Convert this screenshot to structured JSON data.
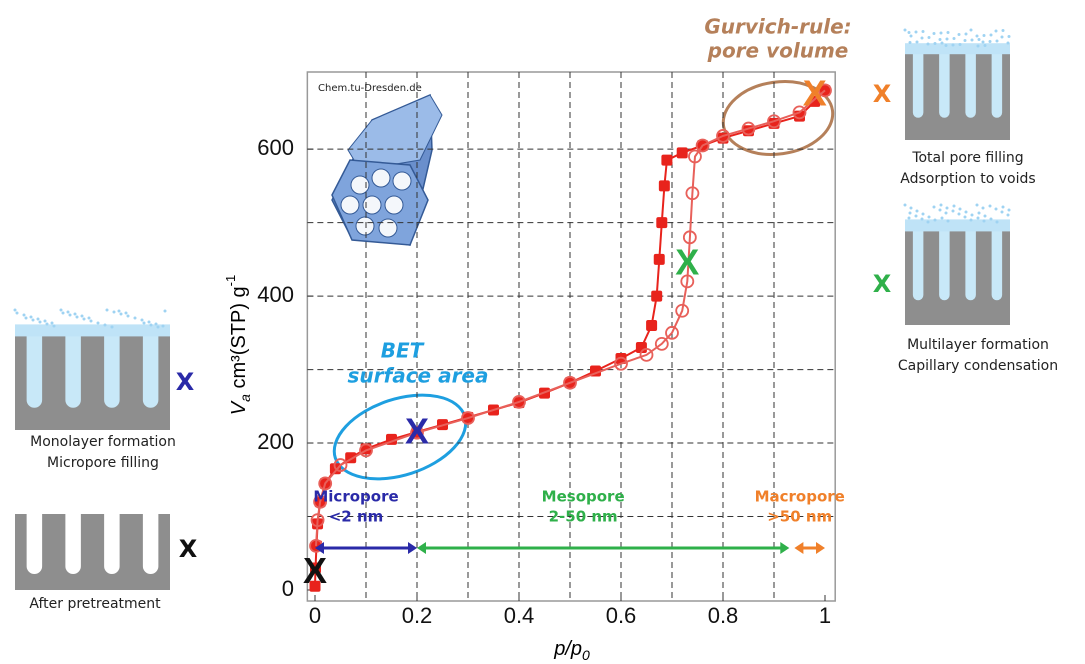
{
  "chart_data": {
    "type": "scatter",
    "watermark": "Chem.tu-Dresden.de",
    "xlabel": [
      "p/p",
      "0"
    ],
    "ylabel": [
      "V",
      "a",
      " cm³(STP) g",
      "-1"
    ],
    "xlim": [
      -0.015,
      1.02
    ],
    "ylim": [
      -15,
      705
    ],
    "xticks": [
      0,
      0.2,
      0.4,
      0.6,
      0.8,
      1
    ],
    "yticks": [
      0,
      200,
      400,
      600
    ],
    "xgrid": [
      0.1,
      0.2,
      0.3,
      0.4,
      0.5,
      0.6,
      0.7,
      0.8,
      0.9
    ],
    "ygrid": [
      100,
      200,
      300,
      400,
      500,
      600
    ],
    "grid": true,
    "series": [
      {
        "color": "#e8231c",
        "marker": "square",
        "x": [
          0,
          0.001,
          0.003,
          0.005,
          0.01,
          0.02,
          0.04,
          0.07,
          0.1,
          0.15,
          0.2,
          0.25,
          0.3,
          0.35,
          0.4,
          0.45,
          0.5,
          0.55,
          0.6,
          0.64,
          0.66,
          0.67,
          0.675,
          0.68,
          0.685,
          0.69,
          0.72,
          0.76,
          0.8,
          0.85,
          0.9,
          0.95,
          0.98,
          1.0
        ],
        "values": [
          5,
          30,
          60,
          90,
          120,
          145,
          165,
          180,
          192,
          205,
          215,
          225,
          235,
          245,
          255,
          268,
          282,
          298,
          315,
          330,
          360,
          400,
          450,
          500,
          550,
          585,
          595,
          605,
          615,
          625,
          635,
          645,
          665,
          680
        ]
      },
      {
        "color": "#e8605a",
        "marker": "circle",
        "x": [
          1.0,
          0.95,
          0.9,
          0.85,
          0.8,
          0.76,
          0.745,
          0.74,
          0.735,
          0.73,
          0.72,
          0.7,
          0.68,
          0.65,
          0.6,
          0.5,
          0.4,
          0.3,
          0.2,
          0.1,
          0.05,
          0.02,
          0.01,
          0.005,
          0.002
        ],
        "values": [
          680,
          650,
          638,
          628,
          618,
          605,
          590,
          540,
          480,
          420,
          380,
          350,
          335,
          320,
          308,
          282,
          256,
          234,
          214,
          190,
          170,
          145,
          120,
          95,
          60
        ]
      }
    ],
    "markers": [
      {
        "label": "X",
        "color": "#111111",
        "x": 0,
        "y": 25
      },
      {
        "label": "X",
        "color": "#2a2aa8",
        "x": 0.2,
        "y": 215
      },
      {
        "label": "X",
        "color": "#2fb04a",
        "x": 0.73,
        "y": 445
      },
      {
        "label": "X",
        "color": "#f0802a",
        "x": 0.98,
        "y": 675
      }
    ],
    "annotations": [
      {
        "lines": [
          "Gurvich-rule:",
          "pore volume"
        ],
        "color": "#b5805a"
      },
      {
        "lines": [
          "BET",
          "surface area"
        ],
        "color": "#1e9fe0"
      }
    ],
    "pore_ranges": [
      {
        "lines": [
          "Micropore",
          "<2 nm"
        ],
        "color": "#2a2aa8",
        "from": 0,
        "to": 0.2
      },
      {
        "lines": [
          "Mesopore",
          "2-50 nm"
        ],
        "color": "#2fb04a",
        "from": 0.2,
        "to": 0.93
      },
      {
        "lines": [
          "Macropore",
          ">50 nm"
        ],
        "color": "#f0802a",
        "from": 0.94,
        "to": 1.0
      }
    ],
    "stages": [
      {
        "label": "X",
        "color": "#f0802a",
        "caption": [
          "Total pore filling",
          "Adsorption to voids"
        ]
      },
      {
        "label": "X",
        "color": "#2fb04a",
        "caption": [
          "Multilayer formation",
          "Capillary condensation"
        ]
      },
      {
        "label": "X",
        "color": "#2a2aa8",
        "caption": [
          "Monolayer formation",
          "Micropore filling"
        ]
      },
      {
        "label": "X",
        "color": "#111111",
        "caption": [
          "After pretreatment"
        ]
      }
    ]
  }
}
